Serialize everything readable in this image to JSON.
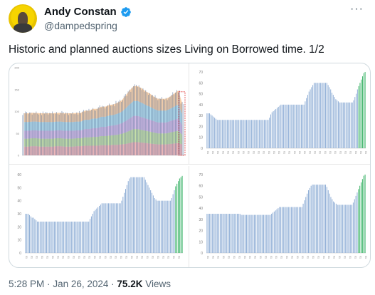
{
  "author": {
    "name": "Andy Constan",
    "handle": "@dampedspring"
  },
  "tweet": {
    "text": "Historic and planned auctions sizes Living on Borrowed time. 1/2"
  },
  "meta": {
    "time": "5:28 PM",
    "sep1": "·",
    "date": "Jan 26, 2024",
    "sep2": "·",
    "views": "75.2K",
    "views_label": "Views"
  },
  "colors": {
    "bar_blue": "#8faed6",
    "bar_green": "#3fb56b",
    "verified": "#1d9bf0"
  },
  "chart_data": [
    {
      "type": "area",
      "ylim": [
        0,
        200
      ],
      "yticks": [
        0,
        50,
        100,
        150,
        200
      ],
      "series": [
        {
          "values": [
            20,
            20,
            21,
            21,
            20,
            20,
            20,
            20,
            21,
            21,
            20,
            20,
            20,
            21,
            21,
            22,
            22,
            22,
            22,
            23,
            23,
            23,
            24,
            24,
            25,
            26,
            28,
            30,
            30,
            29,
            28,
            27,
            26,
            25,
            25,
            25,
            26,
            27,
            28,
            25
          ]
        },
        {
          "values": [
            18,
            18,
            18,
            18,
            18,
            18,
            18,
            18,
            18,
            18,
            18,
            18,
            18,
            18,
            18,
            19,
            19,
            20,
            20,
            21,
            21,
            22,
            22,
            23,
            24,
            26,
            28,
            30,
            30,
            29,
            28,
            27,
            26,
            25,
            25,
            25,
            26,
            27,
            28,
            22
          ]
        },
        {
          "values": [
            18,
            18,
            18,
            18,
            18,
            18,
            18,
            18,
            18,
            18,
            18,
            18,
            18,
            18,
            18,
            19,
            19,
            20,
            20,
            21,
            21,
            22,
            22,
            23,
            24,
            26,
            28,
            30,
            30,
            29,
            28,
            27,
            26,
            25,
            25,
            25,
            26,
            27,
            28,
            22
          ]
        },
        {
          "values": [
            20,
            20,
            20,
            20,
            20,
            20,
            20,
            20,
            20,
            20,
            20,
            20,
            20,
            20,
            20,
            21,
            21,
            22,
            22,
            23,
            23,
            24,
            24,
            25,
            26,
            29,
            32,
            34,
            34,
            33,
            31,
            30,
            28,
            27,
            27,
            27,
            28,
            30,
            32,
            25
          ]
        },
        {
          "values": [
            20,
            20,
            20,
            20,
            20,
            20,
            20,
            20,
            20,
            20,
            20,
            20,
            20,
            20,
            20,
            21,
            21,
            22,
            22,
            23,
            23,
            24,
            24,
            25,
            26,
            29,
            32,
            34,
            34,
            33,
            31,
            30,
            28,
            27,
            27,
            27,
            28,
            30,
            32,
            25
          ]
        }
      ]
    },
    {
      "type": "bar",
      "ylim": [
        0,
        70
      ],
      "yticks": [
        0,
        10,
        20,
        30,
        40,
        50,
        60,
        70
      ],
      "values": [
        32,
        32,
        32,
        31,
        30,
        29,
        28,
        27,
        26,
        26,
        26,
        26,
        26,
        26,
        26,
        26,
        26,
        26,
        26,
        26,
        26,
        26,
        26,
        26,
        26,
        26,
        26,
        26,
        26,
        26,
        26,
        26,
        26,
        26,
        26,
        26,
        26,
        26,
        26,
        26,
        26,
        26,
        26,
        26,
        26,
        26,
        26,
        26,
        26,
        28,
        31,
        33,
        34,
        35,
        36,
        37,
        38,
        39,
        40,
        40,
        40,
        40,
        40,
        40,
        40,
        40,
        40,
        40,
        40,
        40,
        40,
        40,
        40,
        40,
        40,
        40,
        40,
        43,
        46,
        49,
        52,
        54,
        56,
        58,
        60,
        60,
        60,
        60,
        60,
        60,
        60,
        60,
        60,
        60,
        60,
        58,
        56,
        54,
        51,
        49,
        47,
        45,
        44,
        43,
        42,
        42,
        42,
        42,
        42,
        42,
        42,
        42,
        42,
        42,
        42,
        44,
        47,
        50,
        54,
        57,
        60,
        63,
        66,
        69,
        70
      ],
      "highlight_last": 6
    },
    {
      "type": "bar",
      "ylim": [
        0,
        60
      ],
      "yticks": [
        0,
        10,
        20,
        30,
        40,
        50,
        60
      ],
      "values": [
        30,
        30,
        30,
        29,
        28,
        27,
        27,
        26,
        25,
        24,
        24,
        24,
        24,
        24,
        24,
        24,
        24,
        24,
        24,
        24,
        24,
        24,
        24,
        24,
        24,
        24,
        24,
        24,
        24,
        24,
        24,
        24,
        24,
        24,
        24,
        24,
        24,
        24,
        24,
        24,
        24,
        24,
        24,
        24,
        24,
        24,
        24,
        24,
        24,
        26,
        28,
        30,
        32,
        33,
        34,
        35,
        36,
        37,
        38,
        38,
        38,
        38,
        38,
        38,
        38,
        38,
        38,
        38,
        38,
        38,
        38,
        38,
        38,
        40,
        43,
        46,
        49,
        52,
        55,
        57,
        58,
        58,
        58,
        58,
        58,
        58,
        58,
        58,
        58,
        58,
        58,
        56,
        54,
        52,
        50,
        48,
        46,
        44,
        42,
        41,
        40,
        40,
        40,
        40,
        40,
        40,
        40,
        40,
        40,
        40,
        40,
        42,
        45,
        48,
        51,
        53,
        55,
        57,
        58,
        59
      ],
      "highlight_last": 6
    },
    {
      "type": "bar",
      "ylim": [
        0,
        70
      ],
      "yticks": [
        0,
        10,
        20,
        30,
        40,
        50,
        60,
        70
      ],
      "values": [
        35,
        35,
        35,
        35,
        35,
        35,
        35,
        35,
        35,
        35,
        35,
        35,
        35,
        35,
        35,
        35,
        35,
        35,
        35,
        35,
        35,
        35,
        35,
        35,
        35,
        35,
        34,
        34,
        34,
        34,
        34,
        34,
        34,
        34,
        34,
        34,
        34,
        34,
        34,
        34,
        34,
        34,
        34,
        34,
        34,
        34,
        34,
        34,
        34,
        35,
        36,
        37,
        38,
        39,
        40,
        41,
        41,
        41,
        41,
        41,
        41,
        41,
        41,
        41,
        41,
        41,
        41,
        41,
        41,
        41,
        41,
        41,
        41,
        44,
        47,
        50,
        53,
        56,
        58,
        60,
        61,
        61,
        61,
        61,
        61,
        61,
        61,
        61,
        61,
        61,
        61,
        59,
        56,
        53,
        50,
        48,
        46,
        45,
        44,
        43,
        43,
        43,
        43,
        43,
        43,
        43,
        43,
        43,
        43,
        43,
        43,
        45,
        48,
        51,
        54,
        57,
        60,
        63,
        66,
        69,
        70
      ],
      "highlight_last": 6
    }
  ]
}
